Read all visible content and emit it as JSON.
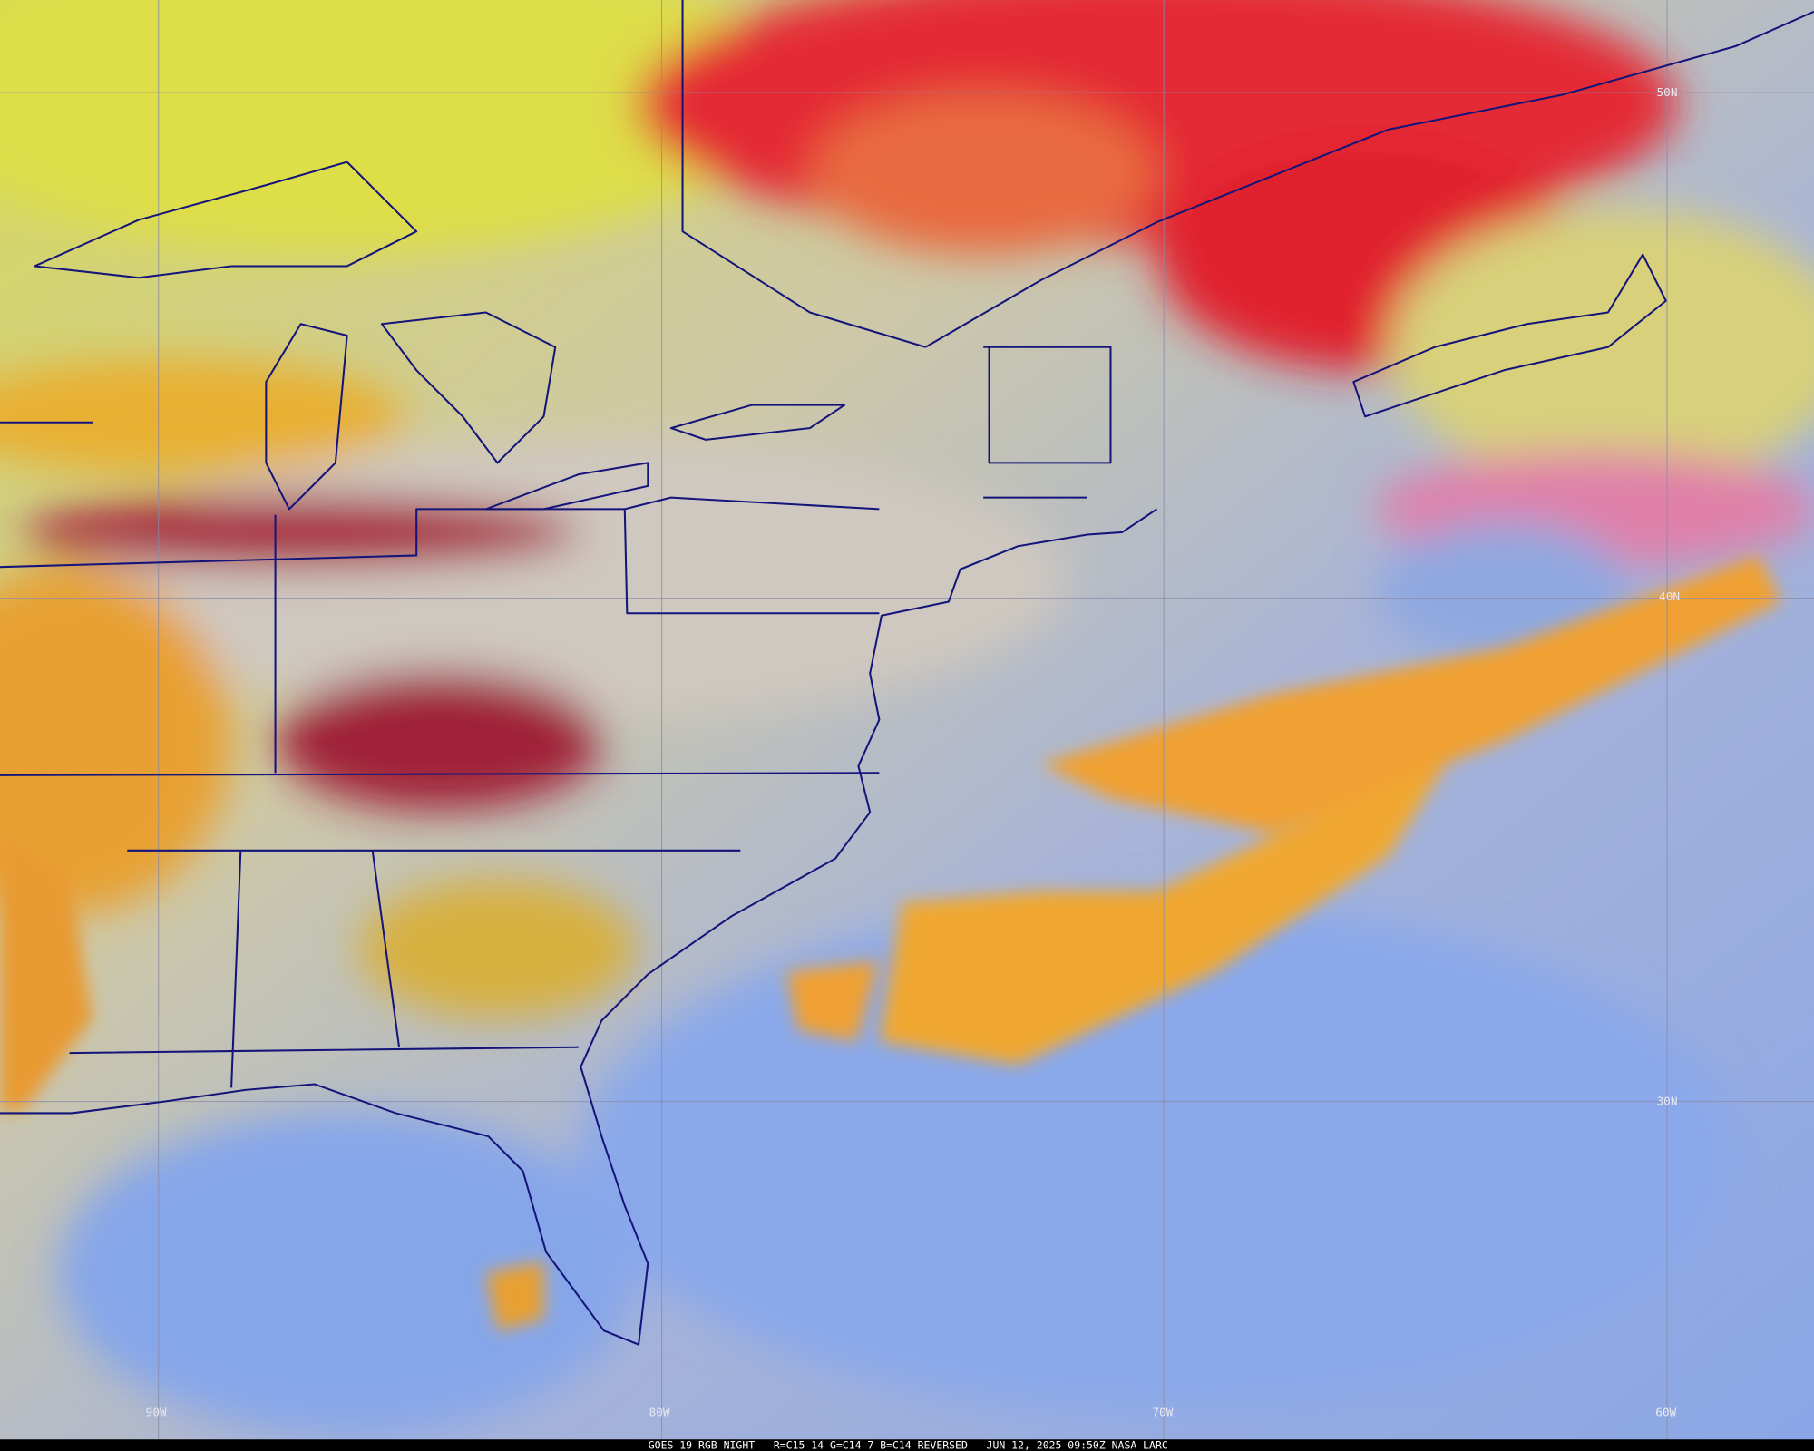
{
  "latitude_labels": [
    "50N",
    "40N",
    "30N"
  ],
  "longitude_labels": [
    "90W",
    "80W",
    "70W",
    "60W"
  ],
  "footer": "GOES-19 RGB-NIGHT   R=C15-14 G=C14-7 B=C14-REVERSED   JUN 12, 2025 09:50Z NASA LARC"
}
